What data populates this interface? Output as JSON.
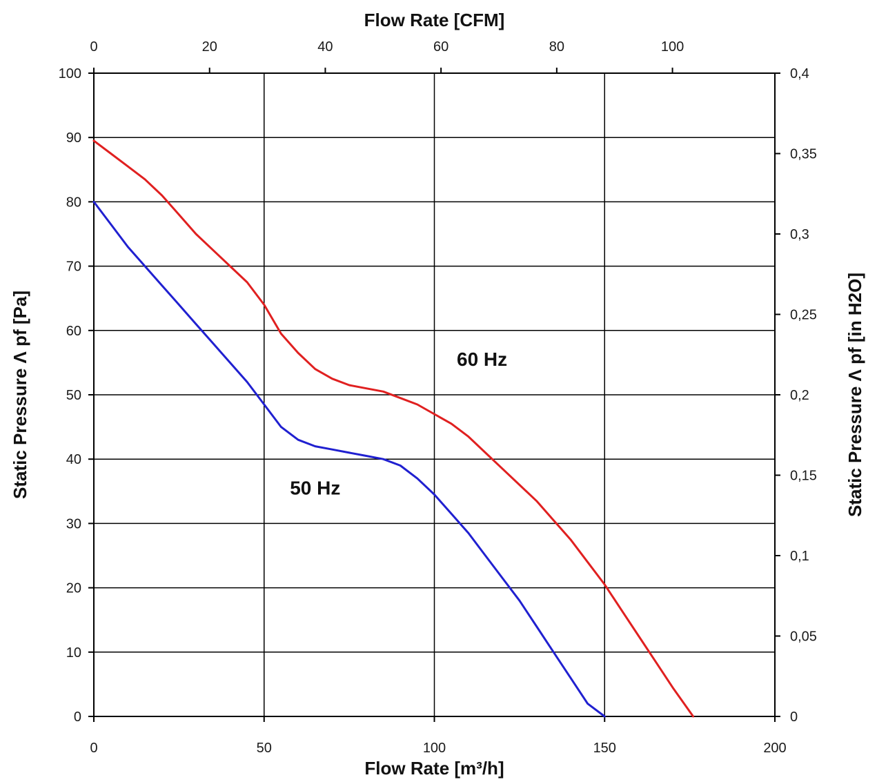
{
  "chart_data": {
    "type": "line",
    "top_xlabel": "Flow Rate [CFM]",
    "bottom_xlabel": "Flow Rate [m³/h]",
    "left_ylabel": "Static Pressure Λ pf [Pa]",
    "right_ylabel": "Static Pressure Λ pf [in H2O]",
    "xlim": [
      0,
      200
    ],
    "ylim": [
      0,
      100
    ],
    "top_xlim_cfm": [
      0,
      117.7
    ],
    "right_ylim_inh2o": [
      0,
      0.4
    ],
    "bottom_x_ticks": [
      "0",
      "50",
      "100",
      "150",
      "200"
    ],
    "left_y_ticks": [
      "0",
      "10",
      "20",
      "30",
      "40",
      "50",
      "60",
      "70",
      "80",
      "90",
      "100"
    ],
    "top_x_ticks": [
      "0",
      "20",
      "40",
      "60",
      "80",
      "100"
    ],
    "right_y_ticks": [
      "0",
      "0,05",
      "0,1",
      "0,15",
      "0,2",
      "0,25",
      "0,3",
      "0,35",
      "0,4"
    ],
    "grid": true,
    "series": [
      {
        "name": "60 Hz",
        "color": "#e02020",
        "x": [
          0,
          5,
          10,
          15,
          20,
          25,
          30,
          35,
          40,
          45,
          50,
          55,
          60,
          65,
          70,
          75,
          80,
          85,
          90,
          95,
          100,
          105,
          110,
          115,
          120,
          125,
          130,
          135,
          140,
          145,
          150,
          155,
          160,
          165,
          170,
          176
        ],
        "y": [
          89.5,
          87.5,
          85.5,
          83.5,
          81,
          78,
          75,
          72.5,
          70,
          67.5,
          64,
          59.5,
          56.5,
          54,
          52.5,
          51.5,
          51,
          50.5,
          49.5,
          48.5,
          47,
          45.5,
          43.5,
          41,
          38.5,
          36,
          33.5,
          30.5,
          27.5,
          24,
          20.5,
          16.5,
          12.5,
          8.5,
          4.5,
          0
        ]
      },
      {
        "name": "50 Hz",
        "color": "#2020d0",
        "x": [
          0,
          5,
          10,
          15,
          20,
          25,
          30,
          35,
          40,
          45,
          50,
          55,
          60,
          65,
          70,
          75,
          80,
          85,
          90,
          95,
          100,
          105,
          110,
          115,
          120,
          125,
          130,
          135,
          140,
          145,
          150
        ],
        "y": [
          80,
          76.5,
          73,
          70,
          67,
          64,
          61,
          58,
          55,
          52,
          48.5,
          45,
          43,
          42,
          41.5,
          41,
          40.5,
          40,
          39,
          37,
          34.5,
          31.5,
          28.5,
          25,
          21.5,
          18,
          14,
          10,
          6,
          2,
          0
        ]
      }
    ]
  }
}
